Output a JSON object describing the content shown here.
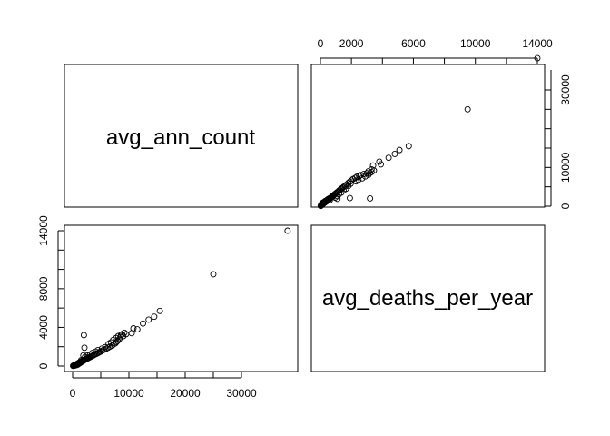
{
  "chart_data": {
    "type": "scatter",
    "variables": [
      "avg_ann_count",
      "avg_deaths_per_year"
    ],
    "axes": {
      "avg_ann_count": {
        "range": [
          0,
          38500
        ],
        "ticks": [
          0,
          10000,
          20000,
          30000
        ]
      },
      "avg_deaths_per_year": {
        "range": [
          0,
          14000
        ],
        "ticks": [
          0,
          2000,
          6000,
          10000,
          14000
        ],
        "lower_ticks": [
          0,
          4000,
          8000,
          14000
        ]
      }
    },
    "grid": false,
    "points": [
      [
        80,
        20
      ],
      [
        120,
        35
      ],
      [
        180,
        50
      ],
      [
        250,
        60
      ],
      [
        300,
        70
      ],
      [
        350,
        90
      ],
      [
        420,
        110
      ],
      [
        480,
        120
      ],
      [
        550,
        140
      ],
      [
        600,
        160
      ],
      [
        650,
        170
      ],
      [
        700,
        190
      ],
      [
        760,
        210
      ],
      [
        820,
        230
      ],
      [
        880,
        250
      ],
      [
        950,
        270
      ],
      [
        1000,
        300
      ],
      [
        1050,
        310
      ],
      [
        1100,
        330
      ],
      [
        1150,
        350
      ],
      [
        1200,
        360
      ],
      [
        1250,
        380
      ],
      [
        1300,
        390
      ],
      [
        1350,
        410
      ],
      [
        1400,
        420
      ],
      [
        1450,
        440
      ],
      [
        1500,
        460
      ],
      [
        1550,
        470
      ],
      [
        1600,
        490
      ],
      [
        1650,
        500
      ],
      [
        1700,
        520
      ],
      [
        1750,
        540
      ],
      [
        1800,
        550
      ],
      [
        1850,
        570
      ],
      [
        1900,
        580
      ],
      [
        1950,
        600
      ],
      [
        2000,
        620
      ],
      [
        2100,
        640
      ],
      [
        2200,
        670
      ],
      [
        2300,
        700
      ],
      [
        2400,
        730
      ],
      [
        2500,
        760
      ],
      [
        2600,
        780
      ],
      [
        2700,
        820
      ],
      [
        2800,
        840
      ],
      [
        2900,
        880
      ],
      [
        3000,
        900
      ],
      [
        3200,
        960
      ],
      [
        3400,
        1020
      ],
      [
        3600,
        1080
      ],
      [
        3800,
        1150
      ],
      [
        4000,
        1200
      ],
      [
        4200,
        1260
      ],
      [
        4400,
        1320
      ],
      [
        4600,
        1380
      ],
      [
        4800,
        1450
      ],
      [
        5000,
        1500
      ],
      [
        5300,
        1600
      ],
      [
        5600,
        1700
      ],
      [
        6000,
        1800
      ],
      [
        6300,
        1900
      ],
      [
        6600,
        2000
      ],
      [
        7000,
        2100
      ],
      [
        7300,
        2250
      ],
      [
        7600,
        2350
      ],
      [
        7800,
        2500
      ],
      [
        8000,
        2600
      ],
      [
        8300,
        2800
      ],
      [
        8500,
        3000
      ],
      [
        8800,
        3300
      ],
      [
        9000,
        3100
      ],
      [
        9500,
        3300
      ],
      [
        10500,
        3400
      ],
      [
        10800,
        3900
      ],
      [
        11500,
        3800
      ],
      [
        12500,
        4400
      ],
      [
        13500,
        4800
      ],
      [
        14500,
        5100
      ],
      [
        15500,
        5700
      ],
      [
        25000,
        9500
      ],
      [
        38200,
        14000
      ],
      [
        2000,
        3200
      ],
      [
        2100,
        1900
      ],
      [
        1900,
        1100
      ],
      [
        1500,
        600
      ],
      [
        1300,
        300
      ],
      [
        900,
        150
      ],
      [
        700,
        100
      ],
      [
        500,
        80
      ],
      [
        2200,
        950
      ],
      [
        2600,
        1100
      ],
      [
        3100,
        1200
      ],
      [
        3500,
        1350
      ],
      [
        4100,
        1500
      ],
      [
        4500,
        1650
      ],
      [
        5200,
        1800
      ],
      [
        5800,
        1950
      ],
      [
        6400,
        2300
      ],
      [
        6800,
        2450
      ],
      [
        7200,
        2700
      ],
      [
        7700,
        2900
      ],
      [
        8100,
        3100
      ],
      [
        8600,
        3200
      ],
      [
        9200,
        3450
      ],
      [
        400,
        50
      ],
      [
        600,
        130
      ],
      [
        750,
        180
      ],
      [
        900,
        260
      ],
      [
        1050,
        220
      ],
      [
        1150,
        280
      ],
      [
        1250,
        320
      ],
      [
        1350,
        350
      ],
      [
        1450,
        380
      ],
      [
        1550,
        420
      ],
      [
        1650,
        450
      ],
      [
        1750,
        480
      ],
      [
        1850,
        520
      ],
      [
        1950,
        560
      ],
      [
        2050,
        600
      ],
      [
        2150,
        650
      ]
    ]
  },
  "labels": {
    "var1": "avg_ann_count",
    "var2": "avg_deaths_per_year",
    "top_ticks": [
      "0",
      "2000",
      "6000",
      "10000",
      "14000"
    ],
    "right_ticks": [
      "0",
      "10000",
      "30000"
    ],
    "left_ticks": [
      "0",
      "4000",
      "8000",
      "14000"
    ],
    "bottom_ticks": [
      "0",
      "10000",
      "20000",
      "30000"
    ]
  }
}
